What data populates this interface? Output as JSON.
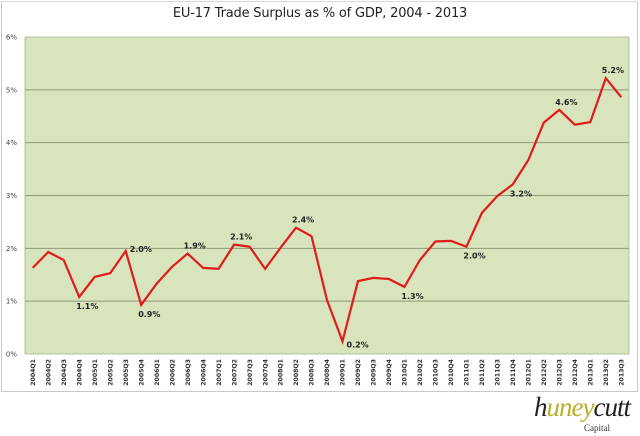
{
  "chart_data": {
    "type": "line",
    "title": "EU-17 Trade Surplus as % of GDP, 2004 - 2013",
    "xlabel": "",
    "ylabel": "",
    "ylim": [
      0,
      6
    ],
    "yticks": [
      "0%",
      "1%",
      "2%",
      "3%",
      "4%",
      "5%",
      "6%"
    ],
    "grid": true,
    "legend": "none",
    "line_color": "#e01b1b",
    "plot_background": "#d8e4bc",
    "categories": [
      "2004Q1",
      "2004Q2",
      "2004Q3",
      "2004Q4",
      "2005Q1",
      "2005Q2",
      "2005Q3",
      "2005Q4",
      "2006Q1",
      "2006Q2",
      "2006Q3",
      "2006Q4",
      "2007Q1",
      "2007Q2",
      "2007Q3",
      "2007Q4",
      "2008Q1",
      "2008Q2",
      "2008Q3",
      "2008Q4",
      "2009Q1",
      "2009Q2",
      "2009Q3",
      "2009Q4",
      "2010Q1",
      "2010Q2",
      "2010Q3",
      "2010Q4",
      "2011Q1",
      "2011Q2",
      "2011Q3",
      "2011Q4",
      "2012Q1",
      "2012Q2",
      "2012Q3",
      "2012Q4",
      "2013Q1",
      "2013Q2",
      "2013Q3"
    ],
    "series": [
      {
        "name": "Trade Surplus % of GDP",
        "values": [
          1.63,
          1.93,
          1.78,
          1.08,
          1.46,
          1.53,
          1.95,
          0.93,
          1.33,
          1.65,
          1.9,
          1.63,
          1.61,
          2.07,
          2.03,
          1.61,
          2.01,
          2.39,
          2.23,
          1.02,
          0.24,
          1.38,
          1.44,
          1.42,
          1.27,
          1.78,
          2.13,
          2.14,
          2.03,
          2.67,
          2.99,
          3.21,
          3.67,
          4.38,
          4.62,
          4.34,
          4.39,
          5.22,
          4.86
        ]
      }
    ],
    "annotations": [
      {
        "index": 3,
        "label": "1.1%",
        "pos": "below"
      },
      {
        "index": 6,
        "label": "2.0%",
        "pos": "right"
      },
      {
        "index": 7,
        "label": "0.9%",
        "pos": "below"
      },
      {
        "index": 10,
        "label": "1.9%",
        "pos": "above"
      },
      {
        "index": 13,
        "label": "2.1%",
        "pos": "above"
      },
      {
        "index": 17,
        "label": "2.4%",
        "pos": "above"
      },
      {
        "index": 20,
        "label": "0.2%",
        "pos": "right"
      },
      {
        "index": 24,
        "label": "1.3%",
        "pos": "below"
      },
      {
        "index": 28,
        "label": "2.0%",
        "pos": "below"
      },
      {
        "index": 31,
        "label": "3.2%",
        "pos": "below"
      },
      {
        "index": 34,
        "label": "4.6%",
        "pos": "above"
      },
      {
        "index": 37,
        "label": "5.2%",
        "pos": "above"
      }
    ]
  },
  "branding": {
    "logo_prefix": "h",
    "logo_accent": "uney",
    "logo_suffix": "cutt",
    "logo_sub": "Capital"
  }
}
